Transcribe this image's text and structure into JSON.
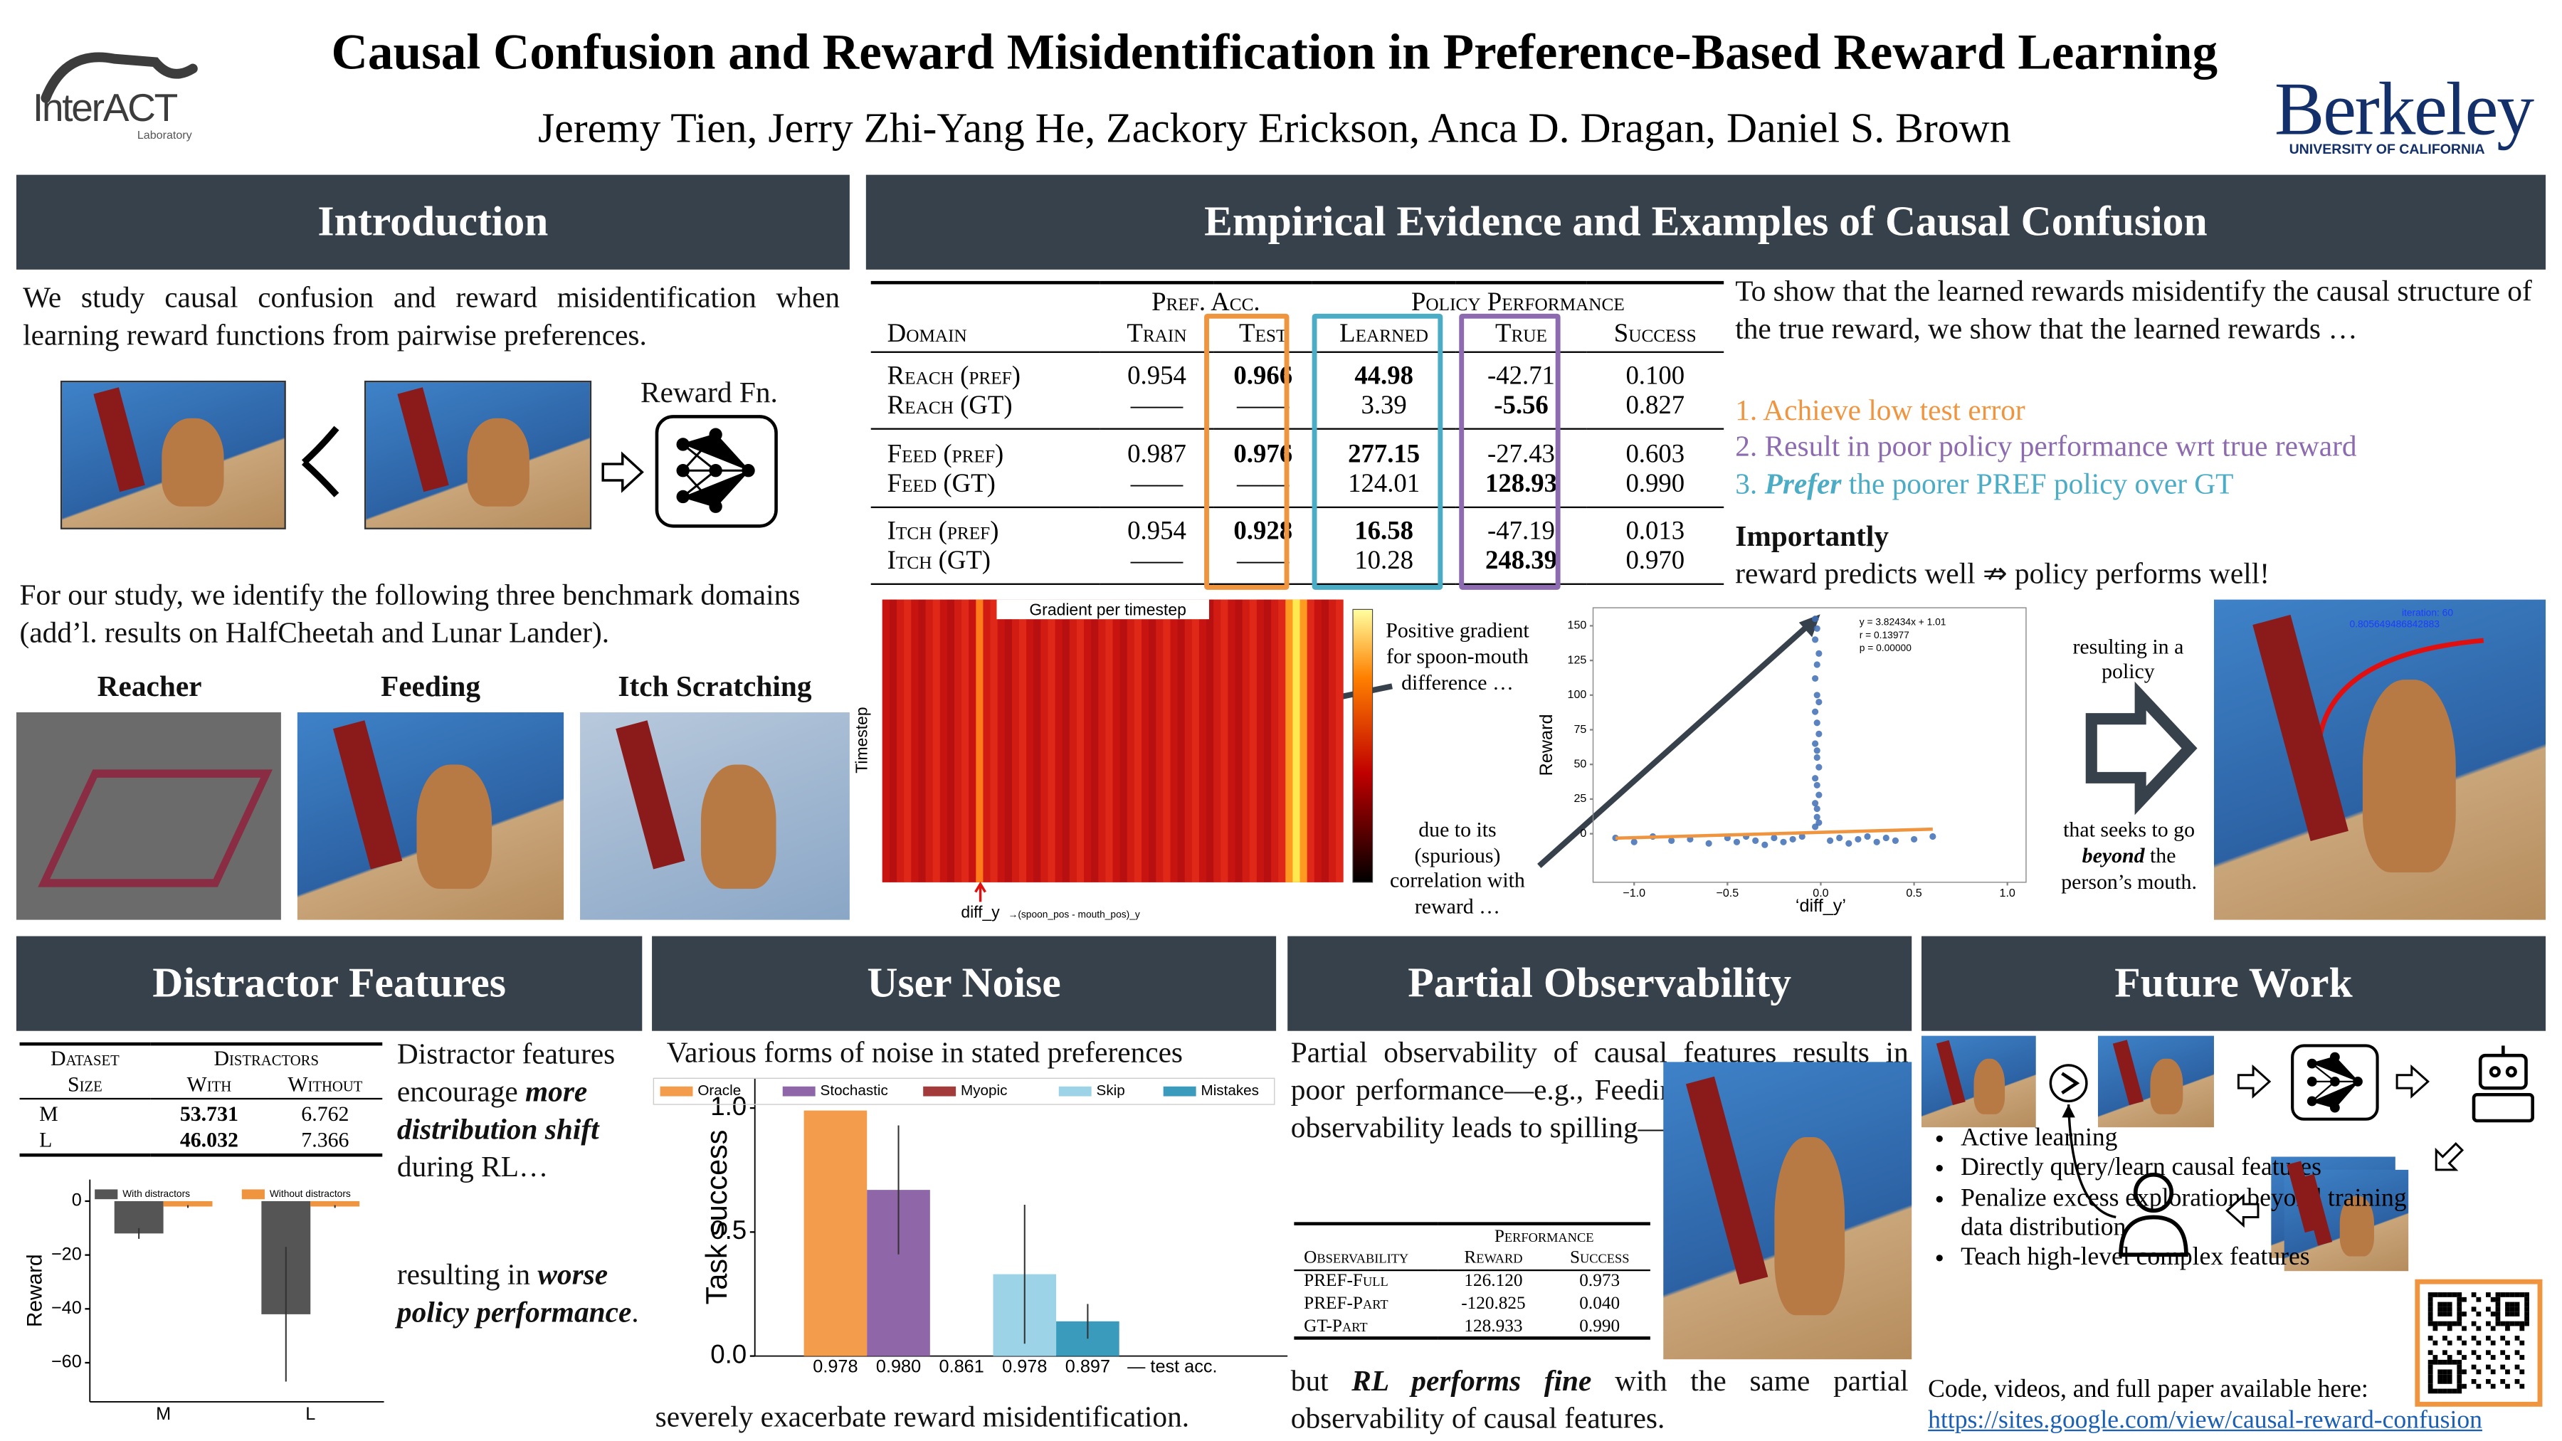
{
  "header": {
    "title": "Causal Confusion and Reward Misidentification in Preference-Based Reward Learning",
    "authors": "Jeremy Tien, Jerry Zhi-Yang He, Zackory Erickson, Anca D. Dragan, Daniel S. Brown",
    "lab": "InterACT",
    "lab_sub": "Laboratory",
    "univ": "Berkeley",
    "univ_sub": "UNIVERSITY OF CALIFORNIA"
  },
  "introduction": {
    "heading": "Introduction",
    "text1": "We study causal confusion and reward misidentification when learning reward functions from pairwise preferences.",
    "reward_label": "Reward Fn.",
    "text2": "For our study, we identify the following three benchmark domains (add’l. results on HalfCheetah and Lunar Lander).",
    "domains": [
      "Reacher",
      "Feeding",
      "Itch Scratching"
    ]
  },
  "evidence": {
    "heading": "Empirical Evidence and Examples of Causal Confusion",
    "table": {
      "group_headers": [
        "Pref. Acc.",
        "Policy Performance"
      ],
      "columns": [
        "Domain",
        "Train",
        "Test",
        "Learned",
        "True",
        "Success"
      ],
      "rows": [
        [
          "Reach (pref)",
          "0.954",
          "0.966",
          "44.98",
          "-42.71",
          "0.100"
        ],
        [
          "Reach (GT)",
          "——",
          "——",
          "3.39",
          "-5.56",
          "0.827"
        ],
        [
          "Feed (pref)",
          "0.987",
          "0.976",
          "277.15",
          "-27.43",
          "0.603"
        ],
        [
          "Feed (GT)",
          "——",
          "——",
          "124.01",
          "128.93",
          "0.990"
        ],
        [
          "Itch (pref)",
          "0.954",
          "0.928",
          "16.58",
          "-47.19",
          "0.013"
        ],
        [
          "Itch (GT)",
          "——",
          "——",
          "10.28",
          "248.39",
          "0.970"
        ]
      ]
    },
    "text": "To show that the learned rewards misidentify the causal structure of the true reward, we show that the learned rewards …",
    "list": [
      [
        "1. Achieve low test error"
      ],
      [
        "2. Result in poor policy performance wrt true reward"
      ],
      [
        "3. ",
        "Prefer",
        " the poorer PREF policy over GT"
      ]
    ],
    "important_label": "Importantly",
    "important_text": "reward predicts well ⇏ policy performs well!",
    "heatmap": {
      "title": "Gradient per timestep",
      "ylabel": "Timestep",
      "xlabel": "diff_y",
      "sublabel": "→(spoon_pos - mouth_pos)_y",
      "note1": "Positive gradient for spoon-mouth difference …",
      "note2": "due to its (spurious) correlation with reward …"
    },
    "scatter": {
      "type": "scatter",
      "ylabel": "Reward",
      "xlabel": "‘diff_y’",
      "stats": [
        "y = 3.82434x + 1.01",
        "r = 0.13977",
        "p = 0.00000"
      ],
      "xlim": [
        -1.22,
        1.1
      ],
      "ylim": [
        -35,
        163
      ],
      "xticks": [
        {
          "value": -1,
          "label": "−1.0"
        },
        {
          "value": -0.5,
          "label": "−0.5"
        },
        {
          "value": 0,
          "label": "0.0"
        },
        {
          "value": 0.5,
          "label": "0.5"
        },
        {
          "value": 1,
          "label": "1.0"
        }
      ],
      "yticks": [
        0,
        25,
        50,
        75,
        100,
        125,
        150
      ],
      "color": "#3d6db5",
      "points": {
        "x": [
          -0.03,
          -0.02,
          -0.03,
          -0.01,
          -0.02,
          -0.03,
          -0.02,
          -0.01,
          -0.03,
          -0.02,
          -0.01,
          -0.03,
          -0.02,
          -0.02,
          -0.01,
          -0.03,
          -0.02,
          -0.01,
          -0.03,
          -0.02,
          -0.02,
          -0.01,
          -0.03,
          -1.1,
          -1.0,
          -0.9,
          -0.8,
          -0.7,
          -0.6,
          -0.5,
          -0.45,
          -0.4,
          -0.35,
          -0.3,
          -0.25,
          -0.2,
          -0.15,
          -0.1,
          0.05,
          0.1,
          0.15,
          0.2,
          0.25,
          0.3,
          0.35,
          0.4,
          0.5,
          0.6
        ],
        "y": [
          155,
          148,
          140,
          130,
          122,
          112,
          100,
          95,
          88,
          80,
          72,
          65,
          60,
          55,
          48,
          40,
          35,
          28,
          22,
          18,
          12,
          8,
          5,
          -3,
          -6,
          -2,
          -5,
          -4,
          -7,
          -3,
          -6,
          -2,
          -5,
          -8,
          -3,
          -6,
          -4,
          -2,
          -5,
          -3,
          -7,
          -4,
          -2,
          -6,
          -3,
          -5,
          -4,
          -2
        ]
      },
      "fit": {
        "color": "#f0953f",
        "x": [
          -1.1,
          0.6
        ],
        "y": [
          -3.2,
          3.3
        ]
      }
    },
    "policy_text1": "resulting in a policy",
    "policy_text2": [
      "that seeks to go ",
      "beyond",
      " the person’s mouth."
    ],
    "iteration": "iteration: 60",
    "iteration_value": "0.805649486842883"
  },
  "distractor": {
    "heading": "Distractor Features",
    "table": {
      "headers": [
        "Dataset",
        "Size",
        "Distractors",
        "With",
        "Without"
      ],
      "rows": [
        [
          "M",
          "53.731",
          "6.762"
        ],
        [
          "L",
          "46.032",
          "7.366"
        ]
      ]
    },
    "text1": [
      "Distractor features encourage ",
      "more distribution shift",
      " during RL…"
    ],
    "text2": [
      "resulting in ",
      "worse policy performance",
      "."
    ],
    "chart": {
      "type": "bar",
      "ylabel": "Reward",
      "categories": [
        "M",
        "L"
      ],
      "ylim": [
        -74.5,
        8
      ],
      "yticks": [
        0,
        {
          "value": -20,
          "label": "−20"
        },
        {
          "value": -40,
          "label": "−40"
        },
        {
          "value": -60,
          "label": "−60"
        }
      ],
      "series": [
        {
          "name": "With distractors",
          "color": "#555555",
          "values": [
            -12,
            -42
          ],
          "errors": [
            2,
            25
          ]
        },
        {
          "name": "Without distractors",
          "color": "#f0953f",
          "values": [
            -2,
            -2
          ],
          "errors": [
            0.5,
            0.5
          ]
        }
      ]
    }
  },
  "noise": {
    "heading": "User Noise",
    "text1": "Various forms of noise in stated preferences",
    "text2": "severely exacerbate reward misidentification.",
    "chart": {
      "type": "bar",
      "ylabel": "Task success",
      "ylim": [
        0,
        1.12
      ],
      "yticks": [
        {
          "value": 0,
          "label": "0.0"
        },
        {
          "value": 0.5,
          "label": "0.5"
        },
        {
          "value": 1,
          "label": "1.0"
        }
      ],
      "series": [
        {
          "name": "Oracle",
          "color": "#f39c4b",
          "value": 0.99,
          "error": 0,
          "test_acc": "0.978"
        },
        {
          "name": "Stochastic",
          "color": "#8f67a8",
          "value": 0.67,
          "error": 0.26,
          "test_acc": "0.980"
        },
        {
          "name": "Myopic",
          "color": "#a33b3b",
          "value": 0,
          "error": 0,
          "test_acc": "0.861"
        },
        {
          "name": "Skip",
          "color": "#9dd3e6",
          "value": 0.33,
          "error": 0.28,
          "test_acc": "0.978"
        },
        {
          "name": "Mistakes",
          "color": "#3a9bbd",
          "value": 0.14,
          "error": 0.07,
          "test_acc": "0.897"
        }
      ],
      "test_acc_label": "— test acc."
    }
  },
  "partial": {
    "heading": "Partial Observability",
    "text1": "Partial observability of causal features results in poor performance—e.g., Feeding w/o food particle observability leads to spilling—",
    "table": {
      "headers": [
        "Observability",
        "Performance",
        "Reward",
        "Success"
      ],
      "rows": [
        [
          "PREF-Full",
          "126.120",
          "0.973"
        ],
        [
          "PREF-Part",
          "-120.825",
          "0.040"
        ],
        [
          "GT-Part",
          "128.933",
          "0.990"
        ]
      ]
    },
    "text2": [
      "but ",
      "RL performs fine",
      " with the same partial observability of causal features."
    ]
  },
  "future": {
    "heading": "Future Work",
    "list": [
      "Active learning",
      "Directly query/learn causal features",
      "Penalize excess exploration beyond training data distribution",
      "Teach high-level complex features"
    ],
    "code_text": "Code, videos, and full paper available here:",
    "link": "https://sites.google.com/view/causal-reward-confusion"
  }
}
